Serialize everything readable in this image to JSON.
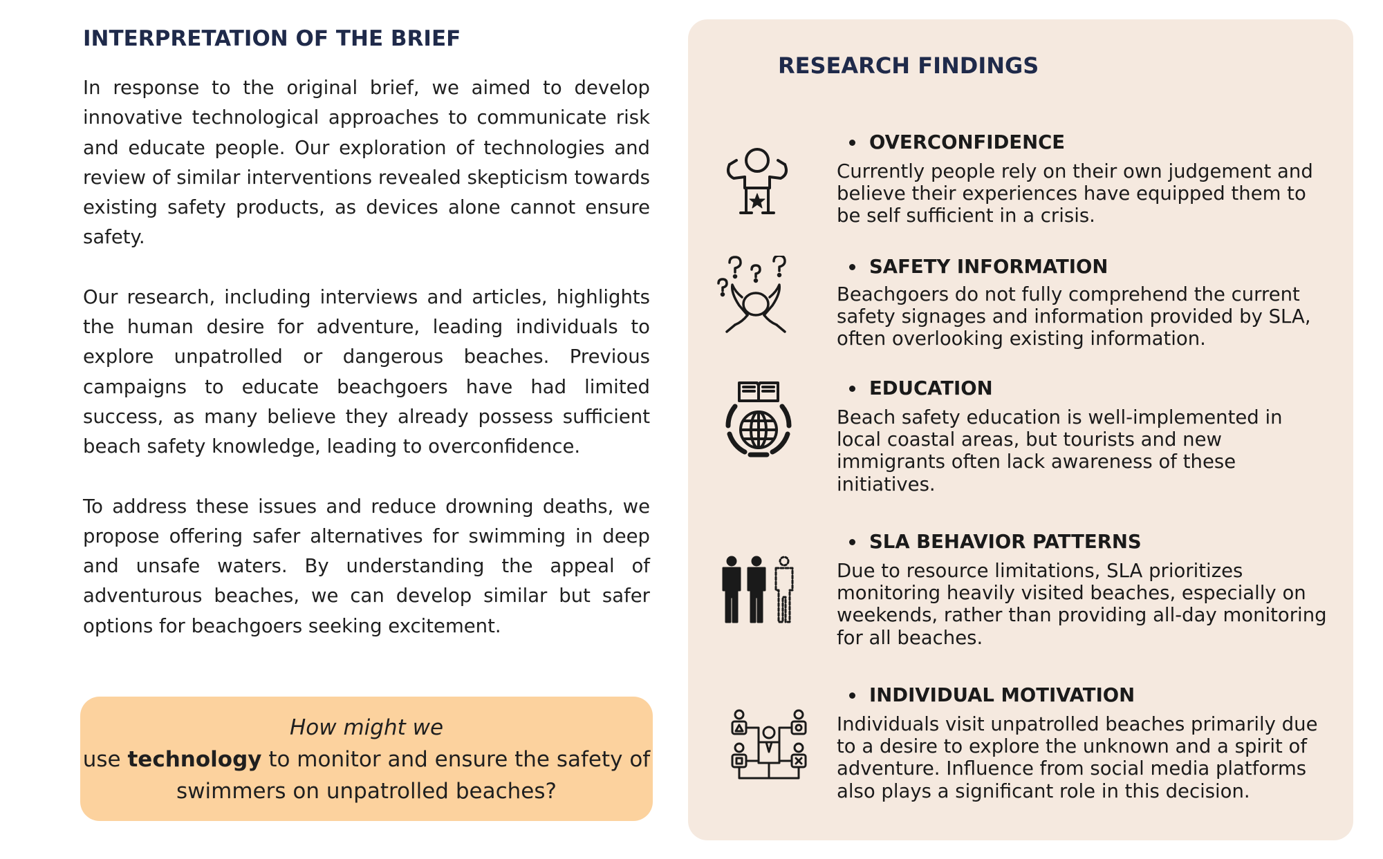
{
  "left": {
    "title": "INTERPRETATION OF THE BRIEF",
    "paragraphs": [
      "In response to the original brief, we aimed to develop innovative technological approaches to communicate risk and educate people. Our exploration of technologies and review of similar interventions revealed skepticism towards existing safety products, as devices alone cannot ensure safety.",
      "Our research, including interviews and articles, highlights the human desire for adventure, leading individuals to explore unpatrolled or dangerous beaches. Previous campaigns to educate beachgoers have had limited success, as many believe they already possess sufficient beach safety knowledge, leading to overconfidence.",
      "To address these issues and reduce drowning deaths, we propose offering safer alternatives for swimming in deep and unsafe waters. By understanding the appeal of adventurous beaches, we can develop similar but safer options for beachgoers seeking excitement."
    ]
  },
  "hmw": {
    "line1": "How might we",
    "pre": "use ",
    "bold": "technology",
    "post": " to monitor and ensure the safety of",
    "line3": "swimmers on unpatrolled beaches?"
  },
  "research": {
    "title": "RESEARCH FINDINGS",
    "findings": [
      {
        "heading": "OVERCONFIDENCE",
        "icon": "confident-person-icon",
        "lines": [
          "Currently people rely on their own judgement and",
          "believe their experiences have equipped them to",
          "be self sufficient in a crisis."
        ]
      },
      {
        "heading": "SAFETY INFORMATION",
        "icon": "confused-person-icon",
        "lines": [
          "Beachgoers do not fully comprehend the current",
          "safety signages and information provided by SLA,",
          "often overlooking existing information."
        ]
      },
      {
        "heading": "EDUCATION",
        "icon": "book-globe-icon",
        "lines": [
          "Beach safety education is well-implemented in",
          "local coastal areas, but tourists and new",
          "immigrants often lack awareness of these",
          "initiatives."
        ]
      },
      {
        "heading": "SLA BEHAVIOR PATTERNS",
        "icon": "people-group-icon",
        "lines": [
          "Due to resource limitations, SLA prioritizes",
          "monitoring heavily visited beaches, especially on",
          "weekends, rather than providing all-day monitoring",
          "for all beaches."
        ]
      },
      {
        "heading": "INDIVIDUAL MOTIVATION",
        "icon": "network-people-icon",
        "lines": [
          "Individuals visit unpatrolled beaches primarily due",
          "to a desire to explore the unknown and a spirit of",
          "adventure. Influence from social media platforms",
          "also plays a significant role in this decision."
        ]
      }
    ]
  }
}
